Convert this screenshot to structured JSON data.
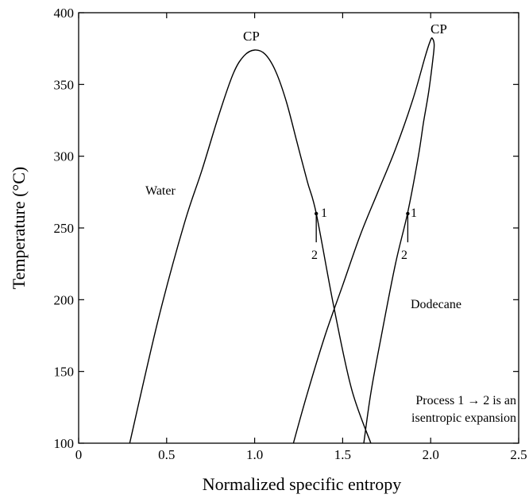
{
  "chart_data": {
    "type": "line",
    "title": "",
    "xlabel": "Normalized specific entropy",
    "ylabel": "Temperature (°C)",
    "xlim": [
      0,
      2.5
    ],
    "ylim": [
      100,
      400
    ],
    "xticks": [
      0,
      0.5,
      1.0,
      1.5,
      2.0,
      2.5
    ],
    "xtick_labels": [
      "0",
      "0.5",
      "1.0",
      "1.5",
      "2.0",
      "2.5"
    ],
    "yticks": [
      100,
      150,
      200,
      250,
      300,
      350,
      400
    ],
    "ytick_labels": [
      "100",
      "150",
      "200",
      "250",
      "300",
      "350",
      "400"
    ],
    "grid": false,
    "series": [
      {
        "name": "Water",
        "x": [
          0.29,
          0.45,
          0.6,
          0.7,
          0.8,
          0.88,
          0.94,
          1.0,
          1.06,
          1.12,
          1.18,
          1.24,
          1.3,
          1.35,
          1.45,
          1.55,
          1.66
        ],
        "y": [
          100,
          185,
          253,
          290,
          330,
          358,
          370,
          374,
          371,
          359,
          338,
          310,
          282,
          260,
          195,
          138,
          100
        ]
      },
      {
        "name": "Dodecane",
        "x": [
          1.22,
          1.3,
          1.4,
          1.5,
          1.6,
          1.7,
          1.8,
          1.9,
          1.97,
          2.0,
          2.01,
          2.02,
          2.015,
          1.99,
          1.96,
          1.93,
          1.87,
          1.8,
          1.72,
          1.66,
          1.62
        ],
        "y": [
          100,
          135,
          175,
          210,
          245,
          275,
          305,
          340,
          370,
          381,
          382,
          378,
          370,
          346,
          324,
          300,
          261,
          225,
          175,
          135,
          100
        ]
      }
    ],
    "point_labels": {
      "water_state_1": "1",
      "water_state_2": "2",
      "dodecane_state_1": "1",
      "dodecane_state_2": "2"
    },
    "annotations": {
      "water": "Water",
      "dodecane": "Dodecane",
      "cp_water": "CP",
      "cp_dodecane": "CP",
      "process_line1": "Process 1 → 2 is an",
      "process_line2": "isentropic expansion"
    },
    "process_water": {
      "s": 1.35,
      "t_start": 260,
      "t_end": 240
    },
    "process_dodecane": {
      "s": 1.87,
      "t_start": 260,
      "t_end": 240
    }
  }
}
